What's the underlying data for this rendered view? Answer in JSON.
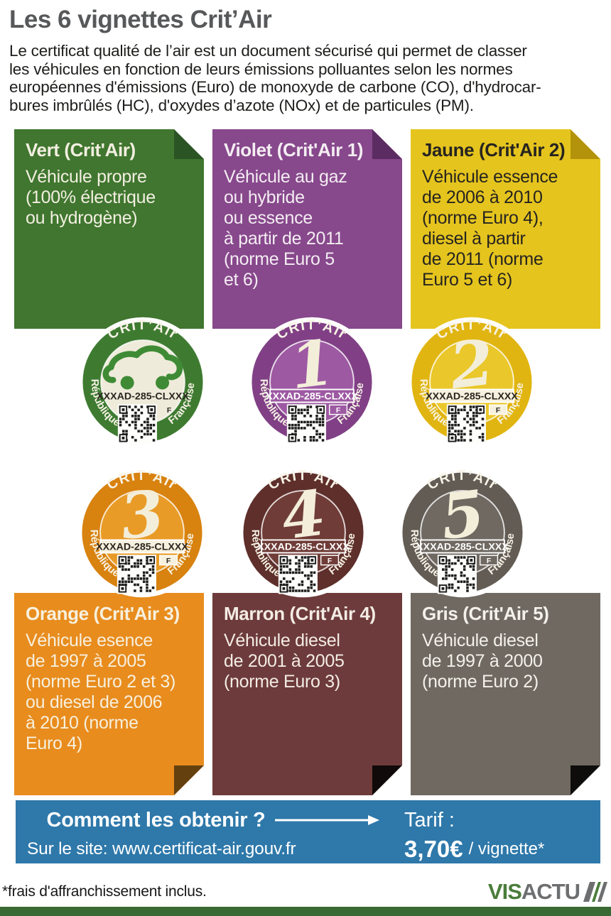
{
  "header": {
    "title": "Les 6 vignettes Crit’Air",
    "intro": "Le certificat qualité de l’air est un document sécurisé qui permet de classer\nles véhicules en fonction de leurs émissions polluantes selon les normes\neuropéennes d'émissions (Euro) de monoxyde de carbone (CO), d'hydrocar-\nbures imbrûlés (HC), d'oxydes d’azote (NOx) et de particules (PM)."
  },
  "cards": [
    {
      "name": "vert",
      "title": "Vert (Crit'Air)",
      "body": "Véhicule propre\n(100% électrique\nou hydrogène)",
      "bg": "#40762f",
      "fold": "#2b5424",
      "text_color": "#f3efe1"
    },
    {
      "name": "violet",
      "title": "Violet (Crit'Air 1)",
      "body": "Véhicule au gaz\nou hybride\nou essence\nà partir de 2011\n(norme Euro 5\net 6)",
      "bg": "#87488c",
      "fold": "#5b2c61",
      "text_color": "#f4edf2"
    },
    {
      "name": "jaune",
      "title": "Jaune (Crit'Air 2)",
      "body": "Véhicule essence\nde 2006 à 2010\n(norme Euro 4),\ndiesel à partir\nde 2011 (norme\nEuro 5 et 6)",
      "bg": "#e5c41e",
      "fold": "#b3930c",
      "text_color": "#262420"
    },
    {
      "name": "orange",
      "title": "Orange (Crit'Air 3)",
      "body": "Véhicule esence\nde 1997 à 2005\n(norme Euro 2 et 3)\nou diesel de 2006\nà 2010 (norme\nEuro 4)",
      "bg": "#e88c1e",
      "fold": "#64400f",
      "text_color": "#f7f0dd"
    },
    {
      "name": "marron",
      "title": "Marron (Crit'Air 4)",
      "body": "Véhicule diesel\nde 2001 à 2005\n(norme Euro 3)",
      "bg": "#6d3b3b",
      "fold": "#100a0a",
      "text_color": "#f3ece4"
    },
    {
      "name": "gris",
      "title": "Gris (Crit'Air 5)",
      "body": "Véhicule diesel\nde 1997 à 2000\n(norme Euro 2)",
      "bg": "#6f6961",
      "fold": "#0e0d0b",
      "text_color": "#f4f1ea"
    }
  ],
  "badges": [
    {
      "name": "vert",
      "brand": "CRIT’Air",
      "number": "",
      "icon": "electric-car-icon",
      "plate": "XXXAD-285-CLXXX",
      "country": "F",
      "left_arc": "République",
      "right_arc": "Française",
      "ring": "#3e7b31",
      "inner": "#efebdb",
      "style": "plain"
    },
    {
      "name": "violet",
      "brand": "CRIT’Air",
      "number": "1",
      "icon": "",
      "plate": "XXXAD-285-CLXXX",
      "country": "F",
      "left_arc": "République",
      "right_arc": "Française",
      "ring": "#814086",
      "inner": "#9d59a2",
      "style": "color"
    },
    {
      "name": "jaune",
      "brand": "CRIT’Air",
      "number": "2",
      "icon": "",
      "plate": "XXXAD-285-CLXXX",
      "country": "F",
      "left_arc": "République",
      "right_arc": "Française",
      "ring": "#e1b511",
      "inner": "#eac72a",
      "style": "light"
    },
    {
      "name": "orange",
      "brand": "CRIT’Air",
      "number": "3",
      "icon": "",
      "plate": "XXXAD-285-CLXXX",
      "country": "F",
      "left_arc": "République",
      "right_arc": "Française",
      "ring": "#d8820f",
      "inner": "#e99b27",
      "style": "light"
    },
    {
      "name": "marron",
      "brand": "CRIT’Air",
      "number": "4",
      "icon": "",
      "plate": "XXXAD-285-CLXXX",
      "country": "F",
      "left_arc": "République",
      "right_arc": "Française",
      "ring": "#5e2f2b",
      "inner": "#6f3c37",
      "style": "color"
    },
    {
      "name": "gris",
      "brand": "CRIT’Air",
      "number": "5",
      "icon": "",
      "plate": "XXXAD-285-CLXXX",
      "country": "F",
      "left_arc": "République",
      "right_arc": "Française",
      "ring": "#625c55",
      "inner": "#6f6962",
      "style": "color"
    }
  ],
  "badge_common": {
    "arc_text_color": "#f7f3e6",
    "number_color": "#f3eed9",
    "plate_dark_text": "#2b2620",
    "plate_light_bg": "#f6f1de",
    "qr_dark": "#1c1c1c",
    "car_icon_color": "#3f8b35"
  },
  "how_to": {
    "bg": "#2e78aa",
    "title": "Comment les obtenir ?",
    "tarif_label": "Tarif :",
    "site": "Sur le site: www.certificat-air.gouv.fr",
    "price": "3,70€",
    "price_suffix": "/ vignette*"
  },
  "footer": {
    "note": "*frais d'affranchissement inclus.",
    "brand_green": "VIS",
    "brand_gray": "ACTU",
    "bar_color": "#3a6a33"
  }
}
